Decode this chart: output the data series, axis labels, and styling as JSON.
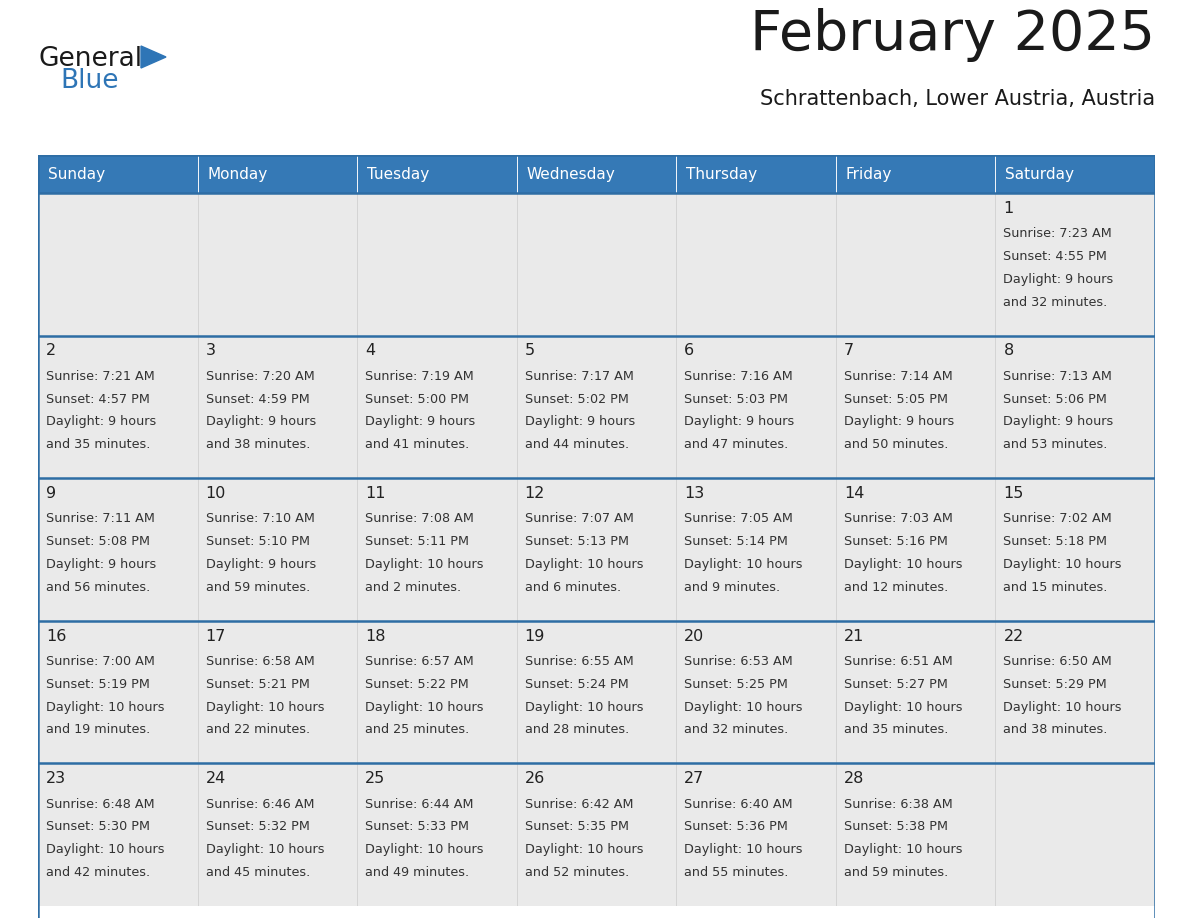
{
  "title": "February 2025",
  "subtitle": "Schrattenbach, Lower Austria, Austria",
  "header_bg": "#3579B6",
  "header_text": "#FFFFFF",
  "cell_bg_odd": "#EAEAEA",
  "cell_bg_even": "#F5F5F5",
  "border_color": "#2E6DA4",
  "text_dark": "#222222",
  "text_info": "#333333",
  "day_num_color": "#222222",
  "logo_general_color": "#1a1a1a",
  "logo_blue_color": "#2E75B6",
  "days_of_week": [
    "Sunday",
    "Monday",
    "Tuesday",
    "Wednesday",
    "Thursday",
    "Friday",
    "Saturday"
  ],
  "calendar_data": [
    [
      null,
      null,
      null,
      null,
      null,
      null,
      {
        "day": "1",
        "sunrise": "7:23 AM",
        "sunset": "4:55 PM",
        "daylight1": "9 hours",
        "daylight2": "and 32 minutes."
      }
    ],
    [
      {
        "day": "2",
        "sunrise": "7:21 AM",
        "sunset": "4:57 PM",
        "daylight1": "9 hours",
        "daylight2": "and 35 minutes."
      },
      {
        "day": "3",
        "sunrise": "7:20 AM",
        "sunset": "4:59 PM",
        "daylight1": "9 hours",
        "daylight2": "and 38 minutes."
      },
      {
        "day": "4",
        "sunrise": "7:19 AM",
        "sunset": "5:00 PM",
        "daylight1": "9 hours",
        "daylight2": "and 41 minutes."
      },
      {
        "day": "5",
        "sunrise": "7:17 AM",
        "sunset": "5:02 PM",
        "daylight1": "9 hours",
        "daylight2": "and 44 minutes."
      },
      {
        "day": "6",
        "sunrise": "7:16 AM",
        "sunset": "5:03 PM",
        "daylight1": "9 hours",
        "daylight2": "and 47 minutes."
      },
      {
        "day": "7",
        "sunrise": "7:14 AM",
        "sunset": "5:05 PM",
        "daylight1": "9 hours",
        "daylight2": "and 50 minutes."
      },
      {
        "day": "8",
        "sunrise": "7:13 AM",
        "sunset": "5:06 PM",
        "daylight1": "9 hours",
        "daylight2": "and 53 minutes."
      }
    ],
    [
      {
        "day": "9",
        "sunrise": "7:11 AM",
        "sunset": "5:08 PM",
        "daylight1": "9 hours",
        "daylight2": "and 56 minutes."
      },
      {
        "day": "10",
        "sunrise": "7:10 AM",
        "sunset": "5:10 PM",
        "daylight1": "9 hours",
        "daylight2": "and 59 minutes."
      },
      {
        "day": "11",
        "sunrise": "7:08 AM",
        "sunset": "5:11 PM",
        "daylight1": "10 hours",
        "daylight2": "and 2 minutes."
      },
      {
        "day": "12",
        "sunrise": "7:07 AM",
        "sunset": "5:13 PM",
        "daylight1": "10 hours",
        "daylight2": "and 6 minutes."
      },
      {
        "day": "13",
        "sunrise": "7:05 AM",
        "sunset": "5:14 PM",
        "daylight1": "10 hours",
        "daylight2": "and 9 minutes."
      },
      {
        "day": "14",
        "sunrise": "7:03 AM",
        "sunset": "5:16 PM",
        "daylight1": "10 hours",
        "daylight2": "and 12 minutes."
      },
      {
        "day": "15",
        "sunrise": "7:02 AM",
        "sunset": "5:18 PM",
        "daylight1": "10 hours",
        "daylight2": "and 15 minutes."
      }
    ],
    [
      {
        "day": "16",
        "sunrise": "7:00 AM",
        "sunset": "5:19 PM",
        "daylight1": "10 hours",
        "daylight2": "and 19 minutes."
      },
      {
        "day": "17",
        "sunrise": "6:58 AM",
        "sunset": "5:21 PM",
        "daylight1": "10 hours",
        "daylight2": "and 22 minutes."
      },
      {
        "day": "18",
        "sunrise": "6:57 AM",
        "sunset": "5:22 PM",
        "daylight1": "10 hours",
        "daylight2": "and 25 minutes."
      },
      {
        "day": "19",
        "sunrise": "6:55 AM",
        "sunset": "5:24 PM",
        "daylight1": "10 hours",
        "daylight2": "and 28 minutes."
      },
      {
        "day": "20",
        "sunrise": "6:53 AM",
        "sunset": "5:25 PM",
        "daylight1": "10 hours",
        "daylight2": "and 32 minutes."
      },
      {
        "day": "21",
        "sunrise": "6:51 AM",
        "sunset": "5:27 PM",
        "daylight1": "10 hours",
        "daylight2": "and 35 minutes."
      },
      {
        "day": "22",
        "sunrise": "6:50 AM",
        "sunset": "5:29 PM",
        "daylight1": "10 hours",
        "daylight2": "and 38 minutes."
      }
    ],
    [
      {
        "day": "23",
        "sunrise": "6:48 AM",
        "sunset": "5:30 PM",
        "daylight1": "10 hours",
        "daylight2": "and 42 minutes."
      },
      {
        "day": "24",
        "sunrise": "6:46 AM",
        "sunset": "5:32 PM",
        "daylight1": "10 hours",
        "daylight2": "and 45 minutes."
      },
      {
        "day": "25",
        "sunrise": "6:44 AM",
        "sunset": "5:33 PM",
        "daylight1": "10 hours",
        "daylight2": "and 49 minutes."
      },
      {
        "day": "26",
        "sunrise": "6:42 AM",
        "sunset": "5:35 PM",
        "daylight1": "10 hours",
        "daylight2": "and 52 minutes."
      },
      {
        "day": "27",
        "sunrise": "6:40 AM",
        "sunset": "5:36 PM",
        "daylight1": "10 hours",
        "daylight2": "and 55 minutes."
      },
      {
        "day": "28",
        "sunrise": "6:38 AM",
        "sunset": "5:38 PM",
        "daylight1": "10 hours",
        "daylight2": "and 59 minutes."
      },
      null
    ]
  ]
}
